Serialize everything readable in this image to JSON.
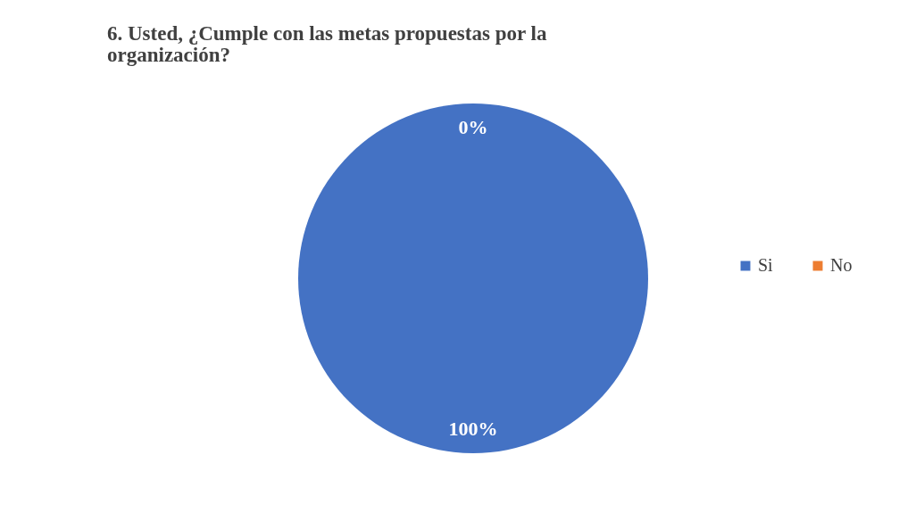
{
  "chart_data": {
    "type": "pie",
    "title": "6. Usted, ¿Cumple con las metas propuestas por la organización?",
    "categories": [
      "Si",
      "No"
    ],
    "values": [
      100,
      0
    ],
    "colors": [
      "#4472c4",
      "#ed7d31"
    ],
    "value_labels": [
      "100%",
      "0%"
    ],
    "legend": "right"
  }
}
